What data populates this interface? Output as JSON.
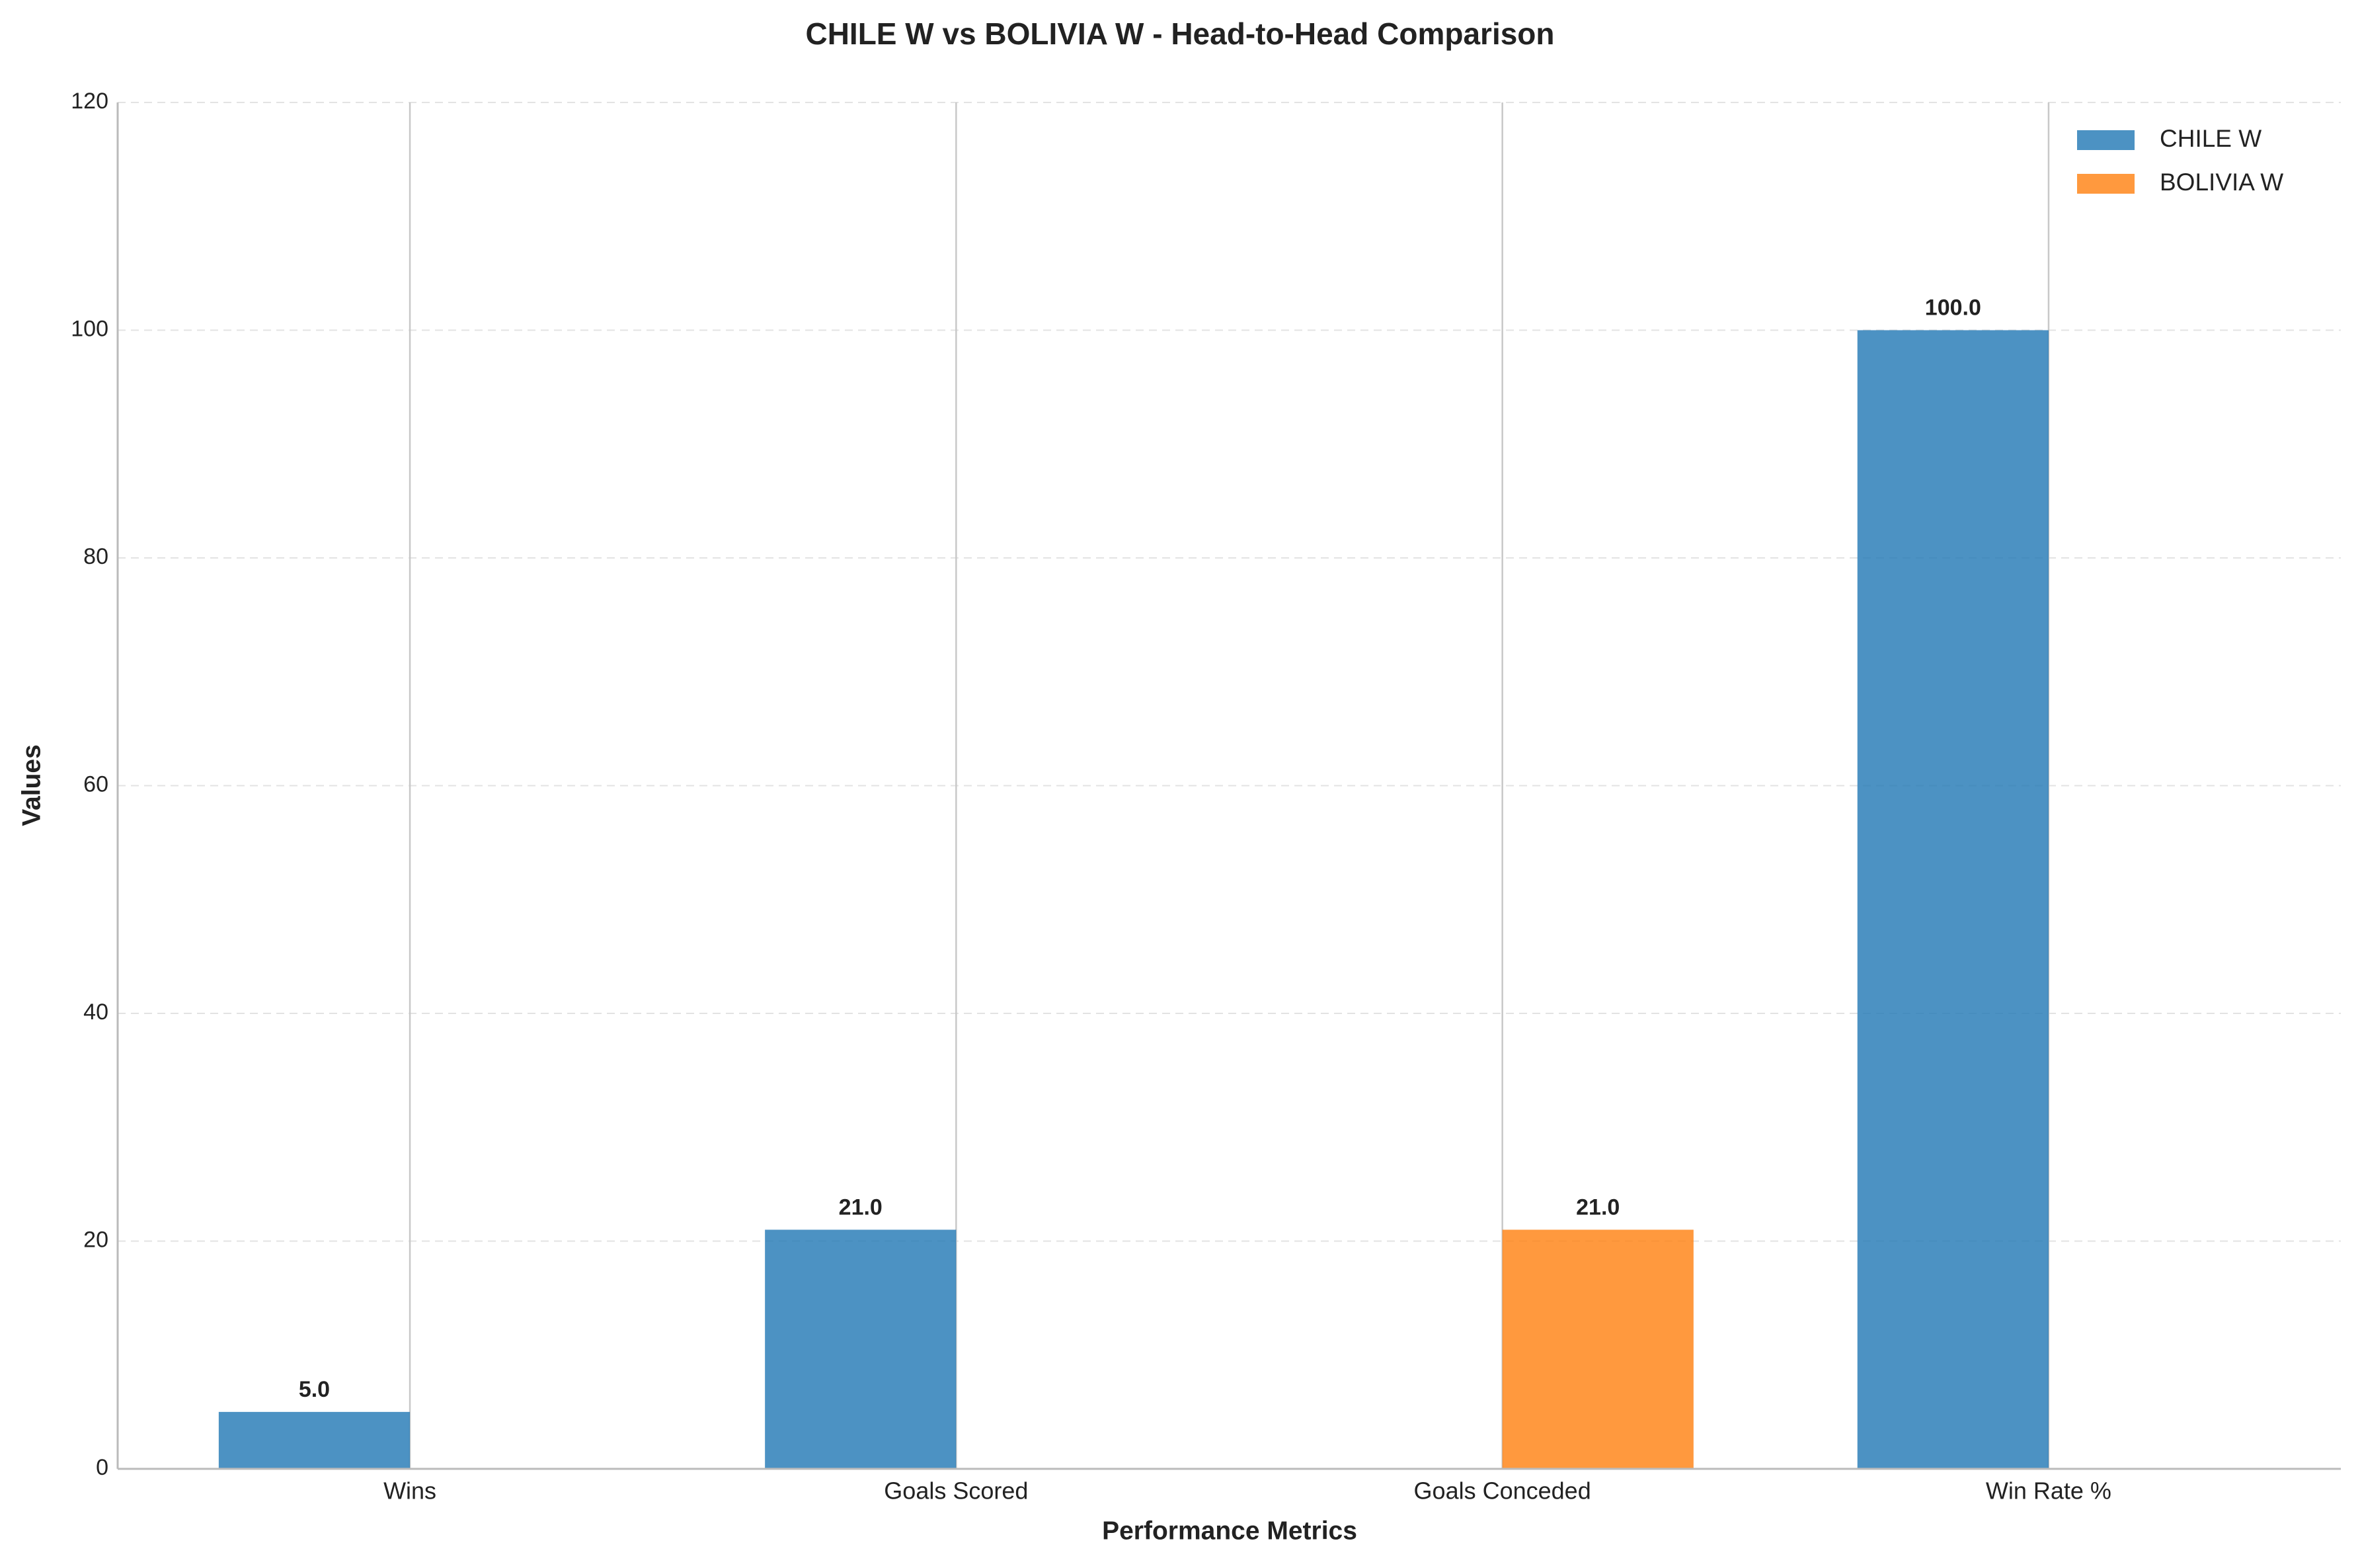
{
  "chart_data": {
    "type": "bar",
    "title": "CHILE W vs BOLIVIA W - Head-to-Head Comparison",
    "x_label": "Performance Metrics",
    "y_label": "Values",
    "categories": [
      "Wins",
      "Goals Scored",
      "Goals Conceded",
      "Win Rate %"
    ],
    "series": [
      {
        "name": "CHILE W",
        "color": "#1f77b4",
        "values": [
          5,
          21,
          0,
          100
        ],
        "value_labels": [
          "5.0",
          "21.0",
          null,
          "100.0"
        ]
      },
      {
        "name": "BOLIVIA W",
        "color": "#ff7f0e",
        "values": [
          0,
          0,
          21,
          0
        ],
        "value_labels": [
          null,
          null,
          "21.0",
          null
        ]
      }
    ],
    "ylim": [
      0,
      120
    ],
    "yticks": [
      0,
      20,
      40,
      60,
      80,
      100,
      120
    ],
    "grid": true,
    "legend": "upper right"
  }
}
